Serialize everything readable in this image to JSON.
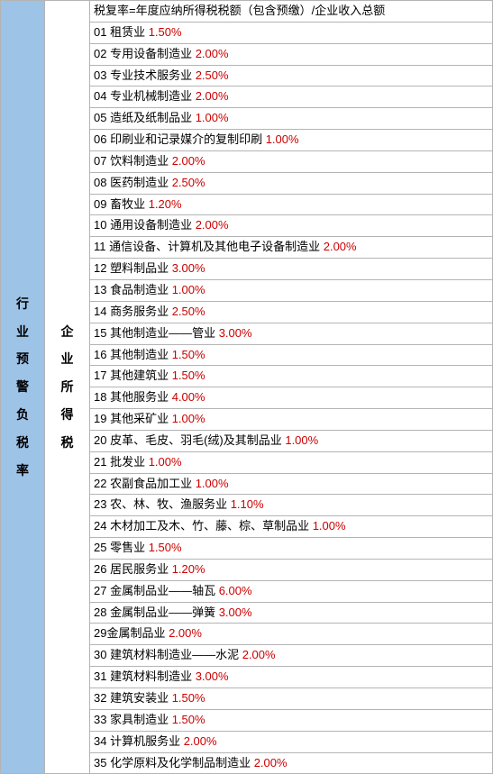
{
  "left_label": "行业预警负税率",
  "mid_label": "企业所得税",
  "formula": "税复率=年度应纳所得税税额（包含预缴）/企业收入总额",
  "text_color": "#000000",
  "rate_color": "#cc0000",
  "header_bg": "#9dc3e6",
  "border_color": "#b4b4b4",
  "font_size": 13,
  "rows": [
    {
      "num": "01",
      "name": "租赁业",
      "rate": "1.50%"
    },
    {
      "num": "02",
      "name": "专用设备制造业",
      "rate": "2.00%"
    },
    {
      "num": "03",
      "name": "专业技术服务业",
      "rate": "2.50%"
    },
    {
      "num": "04",
      "name": "专业机械制造业",
      "rate": "2.00%"
    },
    {
      "num": "05",
      "name": "造纸及纸制品业",
      "rate": "1.00%"
    },
    {
      "num": "06",
      "name": "印刷业和记录媒介的复制印刷",
      "rate": "1.00%"
    },
    {
      "num": "07",
      "name": "饮料制造业",
      "rate": "2.00%"
    },
    {
      "num": "08",
      "name": "医药制造业",
      "rate": "2.50%"
    },
    {
      "num": "09",
      "name": "畜牧业",
      "rate": "1.20%"
    },
    {
      "num": "10",
      "name": "通用设备制造业",
      "rate": "2.00%"
    },
    {
      "num": "11",
      "name": "通信设备、计算机及其他电子设备制造业",
      "rate": "2.00%"
    },
    {
      "num": "12",
      "name": "塑料制品业",
      "rate": "3.00%"
    },
    {
      "num": "13",
      "name": "食品制造业",
      "rate": "1.00%"
    },
    {
      "num": "14",
      "name": "商务服务业",
      "rate": "2.50%"
    },
    {
      "num": "15",
      "name": "其他制造业——管业",
      "rate": "3.00%"
    },
    {
      "num": "16",
      "name": "其他制造业",
      "rate": "1.50%"
    },
    {
      "num": "17",
      "name": "其他建筑业",
      "rate": "1.50%"
    },
    {
      "num": "18",
      "name": "其他服务业",
      "rate": "4.00%"
    },
    {
      "num": "19",
      "name": "其他采矿业",
      "rate": "1.00%"
    },
    {
      "num": "20",
      "name": "皮革、毛皮、羽毛(绒)及其制品业",
      "rate": "1.00%"
    },
    {
      "num": "21",
      "name": "批发业",
      "rate": "1.00%"
    },
    {
      "num": "22",
      "name": "农副食品加工业",
      "rate": "1.00%"
    },
    {
      "num": "23",
      "name": "农、林、牧、渔服务业",
      "rate": "1.10%"
    },
    {
      "num": "24",
      "name": "木材加工及木、竹、藤、棕、草制品业",
      "rate": "1.00%"
    },
    {
      "num": "25",
      "name": "零售业",
      "rate": "1.50%"
    },
    {
      "num": "26",
      "name": "居民服务业",
      "rate": "1.20%"
    },
    {
      "num": "27",
      "name": "金属制品业——轴瓦",
      "rate": "6.00%"
    },
    {
      "num": "28",
      "name": "金属制品业——弹簧",
      "rate": "3.00%"
    },
    {
      "num": "29",
      "name": "金属制品业",
      "rate": "2.00%",
      "nospace": true
    },
    {
      "num": "30",
      "name": "建筑材料制造业——水泥",
      "rate": "2.00%"
    },
    {
      "num": "31",
      "name": "建筑材料制造业",
      "rate": "3.00%"
    },
    {
      "num": "32",
      "name": "建筑安装业",
      "rate": "1.50%"
    },
    {
      "num": "33",
      "name": "家具制造业",
      "rate": "1.50%"
    },
    {
      "num": "34",
      "name": "计算机服务业",
      "rate": "2.00%"
    },
    {
      "num": "35",
      "name": "化学原料及化学制品制造业",
      "rate": "2.00%"
    }
  ]
}
